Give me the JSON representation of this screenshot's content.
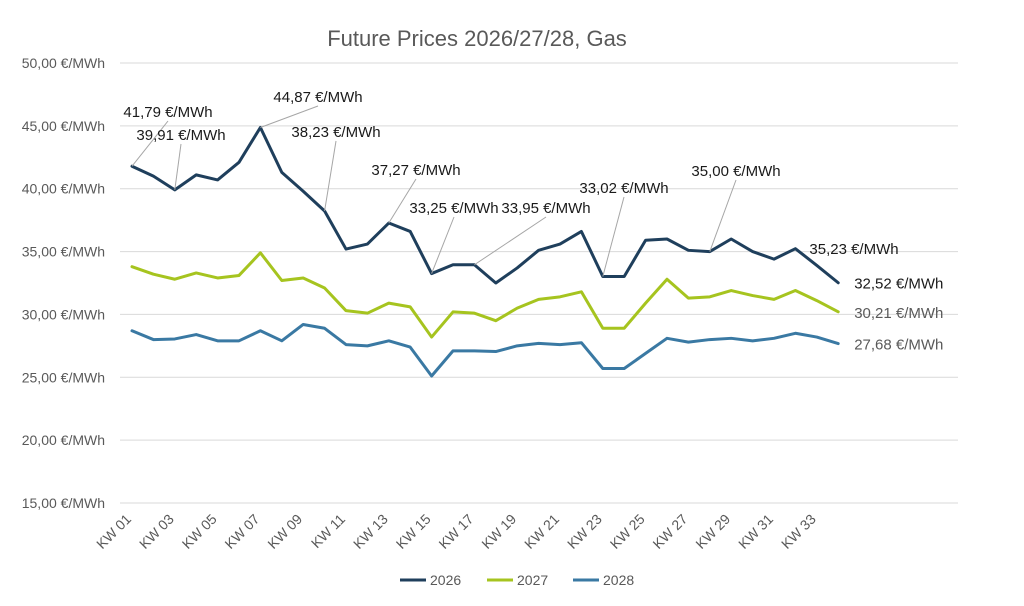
{
  "chart_data": {
    "type": "line",
    "title": "Future Prices 2026/27/28, Gas",
    "xlabel": "",
    "ylabel": "",
    "ylim": [
      15,
      50
    ],
    "yticks": [
      15,
      20,
      25,
      30,
      35,
      40,
      45,
      50
    ],
    "ytick_labels": [
      "15,00 €/MWh",
      "20,00 €/MWh",
      "25,00 €/MWh",
      "30,00 €/MWh",
      "35,00 €/MWh",
      "40,00 €/MWh",
      "45,00 €/MWh",
      "50,00 €/MWh"
    ],
    "x": [
      "KW 01",
      "KW 02",
      "KW 03",
      "KW 04",
      "KW 05",
      "KW 06",
      "KW 07",
      "KW 08",
      "KW 09",
      "KW 10",
      "KW 11",
      "KW 12",
      "KW 13",
      "KW 14",
      "KW 15",
      "KW 16",
      "KW 17",
      "KW 18",
      "KW 19",
      "KW 20",
      "KW 21",
      "KW 22",
      "KW 23",
      "KW 24",
      "KW 25",
      "KW 26",
      "KW 27",
      "KW 28",
      "KW 29",
      "KW 30",
      "KW 31",
      "KW 32",
      "KW 33",
      "KW 34"
    ],
    "xtick_labels": [
      "KW 01",
      "KW 03",
      "KW 05",
      "KW 07",
      "KW 09",
      "KW 11",
      "KW 13",
      "KW 15",
      "KW 17",
      "KW 19",
      "KW 21",
      "KW 23",
      "KW 25",
      "KW 27",
      "KW 29",
      "KW 31",
      "KW 33"
    ],
    "grid": true,
    "legend_position": "bottom",
    "series": [
      {
        "name": "2026",
        "color": "#1f3f5c",
        "values": [
          41.79,
          41.0,
          39.91,
          41.1,
          40.7,
          42.1,
          44.87,
          41.3,
          39.8,
          38.23,
          35.2,
          35.6,
          37.27,
          36.6,
          33.25,
          33.95,
          33.95,
          32.5,
          33.7,
          35.1,
          35.6,
          36.6,
          33.02,
          33.02,
          35.9,
          36.0,
          35.1,
          35.0,
          36.0,
          35.0,
          34.4,
          35.23,
          33.9,
          32.52
        ],
        "end_label": "32,52 €/MWh"
      },
      {
        "name": "2027",
        "color": "#a6c41f",
        "values": [
          33.8,
          33.2,
          32.8,
          33.3,
          32.9,
          33.1,
          34.9,
          32.7,
          32.9,
          32.1,
          30.3,
          30.1,
          30.9,
          30.6,
          28.2,
          30.2,
          30.1,
          29.5,
          30.5,
          31.2,
          31.4,
          31.8,
          28.9,
          28.9,
          30.9,
          32.8,
          31.3,
          31.4,
          31.9,
          31.5,
          31.2,
          31.9,
          31.1,
          30.21
        ],
        "end_label": "30,21 €/MWh"
      },
      {
        "name": "2028",
        "color": "#3a79a3",
        "values": [
          28.7,
          28.0,
          28.05,
          28.4,
          27.9,
          27.9,
          28.7,
          27.9,
          29.2,
          28.9,
          27.6,
          27.5,
          27.9,
          27.4,
          25.1,
          27.1,
          27.1,
          27.05,
          27.5,
          27.7,
          27.6,
          27.75,
          25.7,
          25.7,
          26.9,
          28.1,
          27.8,
          28.0,
          28.1,
          27.9,
          28.1,
          28.5,
          28.2,
          27.68
        ],
        "end_label": "27,68 €/MWh"
      }
    ],
    "annotations": [
      {
        "text": "41,79 €/MWh",
        "series": 0,
        "index": 0
      },
      {
        "text": "39,91 €/MWh",
        "series": 0,
        "index": 2
      },
      {
        "text": "44,87 €/MWh",
        "series": 0,
        "index": 6
      },
      {
        "text": "38,23 €/MWh",
        "series": 0,
        "index": 9
      },
      {
        "text": "37,27 €/MWh",
        "series": 0,
        "index": 12
      },
      {
        "text": "33,25 €/MWh",
        "series": 0,
        "index": 14
      },
      {
        "text": "33,95 €/MWh",
        "series": 0,
        "index": 16
      },
      {
        "text": "33,02 €/MWh",
        "series": 0,
        "index": 22
      },
      {
        "text": "35,00 €/MWh",
        "series": 0,
        "index": 27
      },
      {
        "text": "35,23 €/MWh",
        "series": 0,
        "index": 31
      }
    ]
  }
}
